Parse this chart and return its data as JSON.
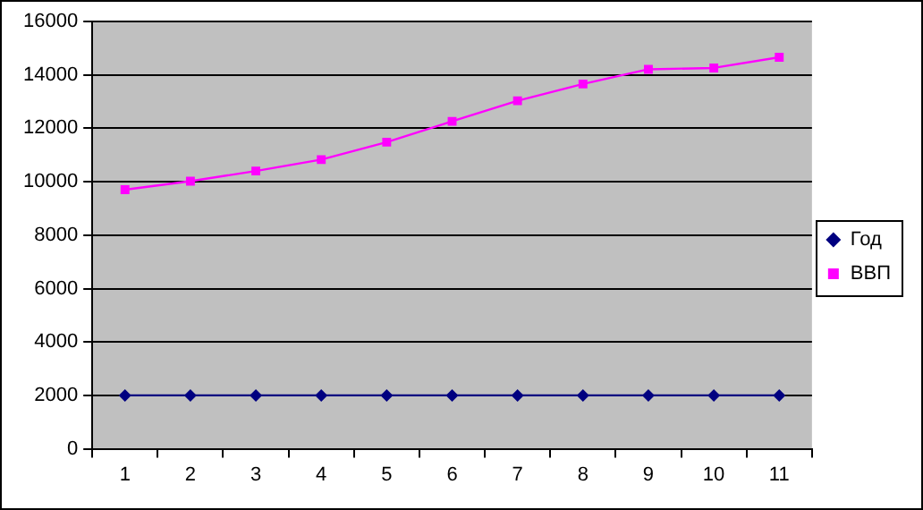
{
  "chart_data": {
    "type": "line",
    "categories": [
      "1",
      "2",
      "3",
      "4",
      "5",
      "6",
      "7",
      "8",
      "9",
      "10",
      "11"
    ],
    "series": [
      {
        "name": "Год",
        "color": "#000080",
        "marker": "diamond",
        "values": [
          2000,
          2000,
          2000,
          2000,
          2000,
          2000,
          2000,
          2000,
          2000,
          2000,
          2000
        ]
      },
      {
        "name": "ВВП",
        "color": "#ff00ff",
        "marker": "square",
        "values": [
          9700,
          10020,
          10400,
          10830,
          11480,
          12260,
          13030,
          13660,
          14210,
          14260,
          14660
        ]
      }
    ],
    "ylim": [
      0,
      16000
    ],
    "yticks": [
      0,
      2000,
      4000,
      6000,
      8000,
      10000,
      12000,
      14000,
      16000
    ],
    "grid": "y",
    "legend": "right",
    "line_style": "solid"
  }
}
